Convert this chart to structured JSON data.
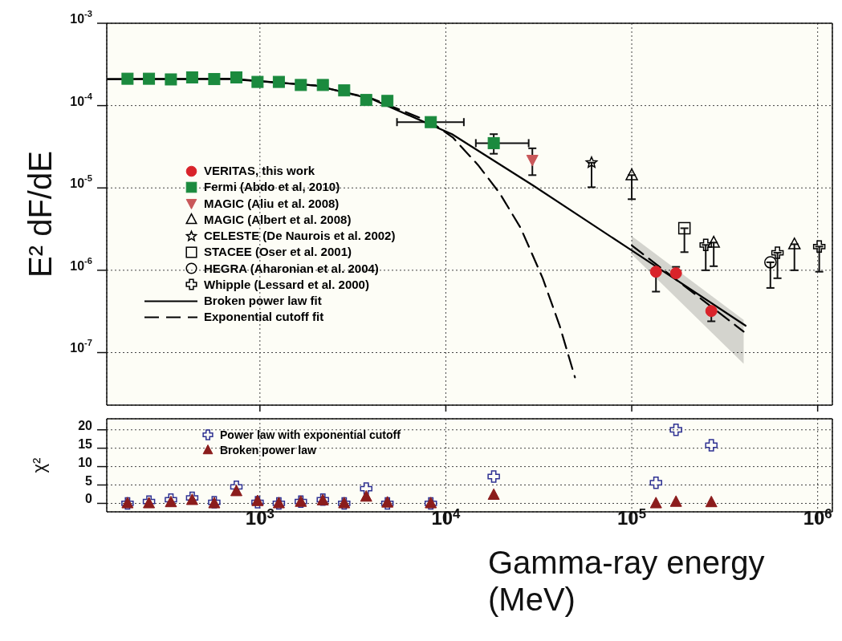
{
  "chart_data": [
    {
      "type": "scatter",
      "ylabel": "E² dF/dE",
      "log": "xy",
      "grid": true,
      "legend": "left",
      "tick_labels": "y",
      "xlim": [
        150,
        1200000
      ],
      "xticks": [
        {
          "value": 1000,
          "label": null
        },
        {
          "value": 10000,
          "label": null
        },
        {
          "value": 100000,
          "label": null
        },
        {
          "value": 1000000,
          "label": null
        }
      ],
      "ylim": [
        2.3e-08,
        0.001
      ],
      "yticks": [
        {
          "value": 1e-07,
          "label": "10$^{-7}$"
        },
        {
          "value": 1e-06,
          "label": "10$^{-6}$"
        },
        {
          "value": 1e-05,
          "label": "10$^{-5}$"
        },
        {
          "value": 0.0001,
          "label": "10$^{-4}$"
        },
        {
          "value": 0.001,
          "label": "10$^{-3}$"
        }
      ],
      "series": [
        {
          "name": "VERITAS, this work",
          "marker": "circle",
          "color": "#d9232a",
          "x": [
            135000,
            173000,
            268000
          ],
          "values": [
            9.6e-07,
            9.2e-07,
            3.2e-07
          ],
          "errors": [
            [
              5.5e-07,
              1e-06
            ],
            [
              8.5e-07,
              1.1e-06
            ],
            [
              2.4e-07,
              3.2e-07
            ]
          ]
        },
        {
          "name": "Fermi (Abdo et al, 2010)",
          "marker": "square",
          "color": "#1b8a3e",
          "x": [
            194,
            253,
            332,
            432,
            568,
            747,
            971,
            1264,
            1660,
            2180,
            2840,
            3730,
            4850,
            8300,
            18100
          ],
          "values": [
            0.000212,
            0.000212,
            0.000208,
            0.00022,
            0.00021,
            0.00022,
            0.000194,
            0.000194,
            0.000178,
            0.000178,
            0.000153,
            0.000117,
            0.000114,
            6.3e-05,
            3.5e-05
          ],
          "errors": [
            null,
            null,
            null,
            null,
            null,
            null,
            null,
            null,
            null,
            null,
            null,
            null,
            null,
            null,
            [
              2.6e-05,
              4.5e-05
            ]
          ],
          "xerrors": [
            null,
            null,
            null,
            null,
            null,
            null,
            null,
            null,
            null,
            null,
            null,
            null,
            null,
            [
              5460,
              12500
            ],
            [
              14500,
              27900
            ]
          ]
        },
        {
          "name": "MAGIC (Aliu et al. 2008)",
          "marker": "triangle_down",
          "color": "#c9585a",
          "x": [
            29200
          ],
          "values": [
            2.2e-05
          ],
          "errors": [
            [
              1.43e-05,
              3.03e-05
            ]
          ]
        },
        {
          "name": "MAGIC (Albert et al. 2008)",
          "marker": "triangle",
          "color": "#000000",
          "x": [
            100000,
            276000,
            750000
          ],
          "values": [
            1.43e-05,
            2.17e-06,
            2.07e-06
          ],
          "errors": [
            [
              7.3e-06,
              1.43e-05
            ],
            [
              1.12e-06,
              2.17e-06
            ],
            [
              1e-06,
              2.07e-06
            ]
          ]
        },
        {
          "name": "CELESTE (De Naurois et al. 2002)",
          "marker": "star",
          "color": "#000000",
          "x": [
            60800
          ],
          "values": [
            2.03e-05
          ],
          "errors": [
            [
              1.02e-05,
              2.03e-05
            ]
          ]
        },
        {
          "name": "STACEE (Oser et al. 2001)",
          "marker": "square",
          "color": "#000000",
          "x": [
            192000
          ],
          "values": [
            3.24e-06
          ],
          "errors": [
            [
              1.66e-06,
              3.24e-06
            ]
          ]
        },
        {
          "name": "HEGRA (Aharonian et al. 2004)",
          "marker": "circle",
          "color": "#000000",
          "x": [
            557000
          ],
          "values": [
            1.25e-06
          ],
          "errors": [
            [
              6.1e-07,
              1.25e-06
            ]
          ]
        },
        {
          "name": "Whipple (Lessard et al. 2000)",
          "marker": "cross",
          "color": "#000000",
          "x": [
            250000,
            608000,
            1020000
          ],
          "values": [
            2.03e-06,
            1.63e-06,
            1.94e-06
          ],
          "errors": [
            [
              1e-06,
              2.03e-06
            ],
            [
              8e-07,
              1.63e-06
            ],
            [
              9.6e-07,
              1.94e-06
            ]
          ]
        },
        {
          "name": "Broken power law fit",
          "type": "line",
          "line_style": "solid",
          "color": "#000000",
          "x": [
            150,
            700,
            2000,
            4000,
            10800,
            29500,
            100000,
            410000
          ],
          "values": [
            0.00021,
            0.00021,
            0.000175,
            0.00012,
            4.5e-05,
            1.07e-05,
            1.74e-06,
            2.12e-07
          ]
        },
        {
          "name": "Exponential cutoff fit",
          "type": "line",
          "line_style": "dashed",
          "color": "#000000",
          "x": [
            150,
            700,
            2000,
            4000,
            8300,
            10900,
            14900,
            19500,
            25300,
            33200,
            41000,
            49500
          ],
          "values": [
            0.00021,
            0.000212,
            0.000175,
            0.000122,
            6.3e-05,
            4.1e-05,
            1.9e-05,
            8.6e-06,
            3.24e-06,
            8e-07,
            2.1e-07,
            5e-08
          ]
        },
        {
          "type": "line",
          "line_style": "dashed",
          "color": "#000000",
          "x": [
            100000,
            400000
          ],
          "values": [
            2e-06,
            1.8e-07
          ],
          "lower": [
            1.56e-06,
            7.3e-08
          ],
          "upper": [
            2.6e-06,
            2.5e-07
          ]
        }
      ]
    },
    {
      "type": "scatter",
      "ylabel": "χ²",
      "xlabel": "Gamma-ray energy (MeV)",
      "log": "x",
      "grid": true,
      "legend": "top left",
      "xlim": [
        150,
        1200000
      ],
      "xticks": [
        {
          "value": 1000,
          "label": "10$^{3}$"
        },
        {
          "value": 10000,
          "label": "10$^{4}$"
        },
        {
          "value": 100000,
          "label": "10$^{5}$"
        },
        {
          "value": 1000000,
          "label": "10$^{6}$"
        }
      ],
      "ylim": [
        -2.3,
        23
      ],
      "yticks": [
        0,
        5,
        10,
        15,
        20
      ],
      "x": [
        194,
        253,
        332,
        432,
        568,
        747,
        971,
        1264,
        1660,
        2180,
        2840,
        3730,
        4850,
        8300,
        18100,
        135000,
        173000,
        268000
      ],
      "series": [
        {
          "name": "Power law with exponential cutoff",
          "marker": "cross",
          "color": "#2e3192",
          "values": [
            0,
            0.5,
            1,
            1.5,
            0.3,
            4.5,
            0.3,
            0,
            0.5,
            1,
            0,
            4,
            0,
            0,
            7.3,
            5.6,
            20,
            15.8
          ]
        },
        {
          "name": "Broken power law",
          "marker": "triangle",
          "color": "#8b1c1c",
          "values": [
            0,
            0,
            0.3,
            0.9,
            0,
            3.3,
            0.6,
            0,
            0.4,
            0.8,
            0,
            1.8,
            0.2,
            0,
            2.3,
            0,
            0.4,
            0.3
          ]
        }
      ]
    }
  ]
}
